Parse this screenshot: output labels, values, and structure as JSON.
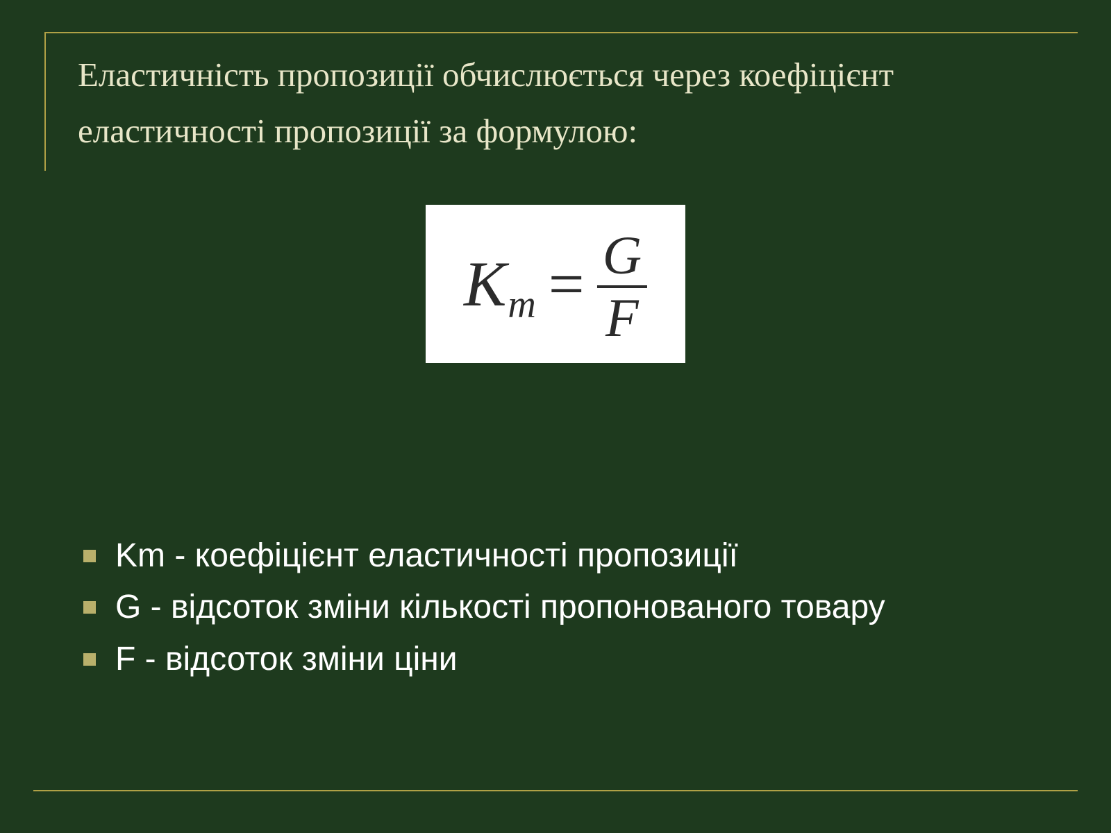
{
  "colors": {
    "background": "#1e3a1e",
    "frame": "#b0a146",
    "title_text": "#e8e6c8",
    "bullet_marker": "#b9b06b",
    "bullet_text": "#ffffff",
    "formula_bg": "#ffffff",
    "formula_text": "#2b2b2b"
  },
  "typography": {
    "title_font": "serif",
    "title_size_pt": 37,
    "bullet_font": "sans-serif",
    "bullet_size_pt": 36,
    "formula_size_pt": 70
  },
  "title": "Еластичність пропозиції обчислюється через коефіцієнт еластичності пропозиції за формулою:",
  "formula": {
    "lhs_var": "K",
    "lhs_sub": "m",
    "eq": "=",
    "numerator": "G",
    "denominator": "F"
  },
  "bullets": [
    "Km - коефіцієнт еластичності пропозиції",
    "G - відсоток зміни кількості пропонованого товару",
    "F - відсоток зміни ціни"
  ]
}
